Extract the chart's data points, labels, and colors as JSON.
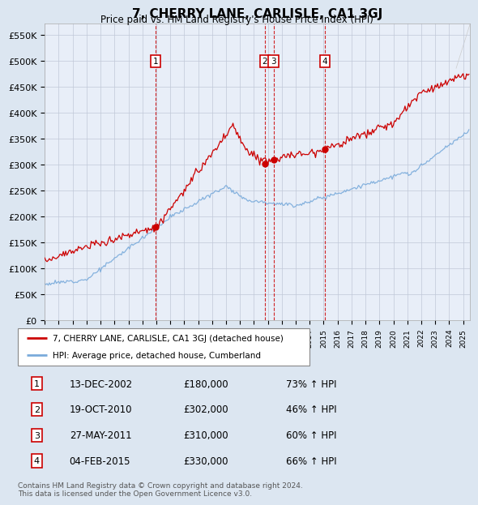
{
  "title": "7, CHERRY LANE, CARLISLE, CA1 3GJ",
  "subtitle": "Price paid vs. HM Land Registry's House Price Index (HPI)",
  "yticks": [
    0,
    50000,
    100000,
    150000,
    200000,
    250000,
    300000,
    350000,
    400000,
    450000,
    500000,
    550000
  ],
  "ytick_labels": [
    "£0",
    "£50K",
    "£100K",
    "£150K",
    "£200K",
    "£250K",
    "£300K",
    "£350K",
    "£400K",
    "£450K",
    "£500K",
    "£550K"
  ],
  "xmin": 1995.0,
  "xmax": 2025.5,
  "ymin": 0,
  "ymax": 572000,
  "sale_color": "#cc0000",
  "hpi_color": "#7aabdb",
  "sale_label": "7, CHERRY LANE, CARLISLE, CA1 3GJ (detached house)",
  "hpi_label": "HPI: Average price, detached house, Cumberland",
  "transactions": [
    {
      "num": 1,
      "date_str": "13-DEC-2002",
      "date_x": 2002.95,
      "price": 180000,
      "pct": "73%",
      "arrow": "↑"
    },
    {
      "num": 2,
      "date_str": "19-OCT-2010",
      "date_x": 2010.79,
      "price": 302000,
      "pct": "46%",
      "arrow": "↑"
    },
    {
      "num": 3,
      "date_str": "27-MAY-2011",
      "date_x": 2011.4,
      "price": 310000,
      "pct": "60%",
      "arrow": "↑"
    },
    {
      "num": 4,
      "date_str": "04-FEB-2015",
      "date_x": 2015.09,
      "price": 330000,
      "pct": "66%",
      "arrow": "↑"
    }
  ],
  "footnote": "Contains HM Land Registry data © Crown copyright and database right 2024.\nThis data is licensed under the Open Government Licence v3.0.",
  "background_color": "#dce6f1",
  "plot_bg_color": "#e8eef8",
  "grid_color": "#c0c8d8"
}
